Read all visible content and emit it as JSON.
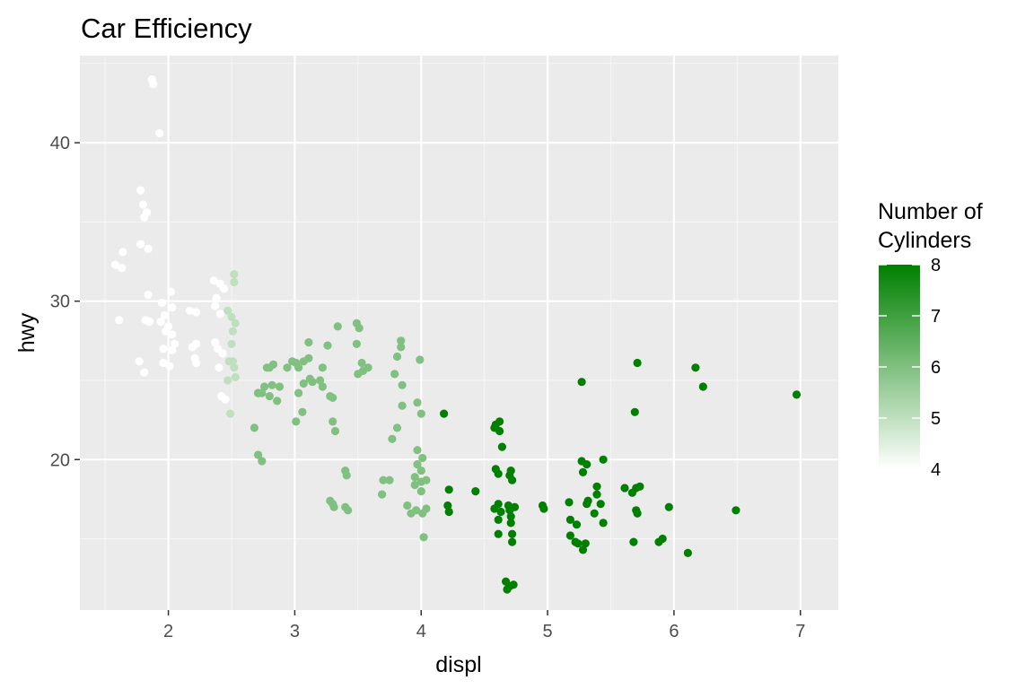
{
  "chart_data": {
    "type": "scatter",
    "title": "Car Efficiency",
    "xlabel": "displ",
    "ylabel": "hwy",
    "xlim": [
      1.3,
      7.3
    ],
    "ylim": [
      10.5,
      45.5
    ],
    "xticks": [
      2,
      3,
      4,
      5,
      6,
      7
    ],
    "xtick_labels": [
      "2",
      "3",
      "4",
      "5",
      "6",
      "7"
    ],
    "yticks": [
      20,
      30,
      40
    ],
    "ytick_labels": [
      "20",
      "30",
      "40"
    ],
    "grid": true,
    "legend": {
      "title_lines": [
        "Number of",
        "Cylinders"
      ],
      "position": "right",
      "type": "continuous-colorbar",
      "range": [
        4,
        8
      ],
      "breaks": [
        4,
        5,
        6,
        7,
        8
      ],
      "break_labels": [
        "4",
        "5",
        "6",
        "7",
        "8"
      ],
      "low_color": "#ffffff",
      "high_color": "#008000"
    },
    "colors": {
      "panel_background": "#ebebeb",
      "grid_major": "#ffffff",
      "grid_minor": "#f5f5f5",
      "tick_text": "#4d4d4d"
    },
    "points": [
      [
        1.87,
        44.0
      ],
      [
        1.88,
        43.7
      ],
      [
        1.93,
        40.6
      ],
      [
        1.78,
        37.0
      ],
      [
        1.8,
        36.1
      ],
      [
        1.83,
        35.6
      ],
      [
        1.81,
        35.3
      ],
      [
        1.78,
        33.6
      ],
      [
        1.84,
        33.3
      ],
      [
        1.64,
        33.1
      ],
      [
        1.58,
        32.3
      ],
      [
        1.63,
        32.1
      ],
      [
        1.84,
        30.4
      ],
      [
        2.02,
        30.6
      ],
      [
        1.95,
        29.9
      ],
      [
        2.03,
        29.6
      ],
      [
        2.17,
        29.4
      ],
      [
        2.22,
        29.3
      ],
      [
        1.97,
        29.1
      ],
      [
        1.61,
        28.8
      ],
      [
        1.82,
        28.8
      ],
      [
        1.85,
        28.7
      ],
      [
        1.94,
        28.7
      ],
      [
        2.0,
        28.4
      ],
      [
        1.98,
        28.1
      ],
      [
        2.03,
        27.9
      ],
      [
        2.05,
        27.3
      ],
      [
        2.22,
        27.3
      ],
      [
        2.19,
        27.1
      ],
      [
        1.96,
        27.0
      ],
      [
        2.03,
        26.9
      ],
      [
        2.21,
        26.4
      ],
      [
        2.22,
        26.1
      ],
      [
        1.77,
        26.2
      ],
      [
        1.96,
        26.1
      ],
      [
        2.01,
        25.9
      ],
      [
        1.81,
        25.5
      ],
      [
        2.36,
        31.3
      ],
      [
        2.41,
        31.1
      ],
      [
        2.44,
        30.8
      ],
      [
        2.52,
        31.7
      ],
      [
        2.52,
        31.2
      ],
      [
        2.38,
        30.2
      ],
      [
        2.37,
        29.7
      ],
      [
        2.41,
        29.2
      ],
      [
        2.51,
        28.1
      ],
      [
        2.37,
        27.4
      ],
      [
        2.39,
        27.0
      ],
      [
        2.43,
        26.7
      ],
      [
        2.5,
        27.3
      ],
      [
        2.51,
        26.2
      ],
      [
        2.4,
        25.8
      ],
      [
        2.47,
        25.0
      ],
      [
        2.53,
        25.2
      ],
      [
        2.42,
        24.0
      ],
      [
        2.45,
        23.8
      ],
      [
        2.49,
        22.9
      ],
      [
        2.68,
        22.0
      ],
      [
        2.71,
        20.3
      ],
      [
        2.74,
        19.9
      ],
      [
        2.71,
        24.2
      ],
      [
        2.74,
        24.2
      ],
      [
        2.47,
        29.4
      ],
      [
        2.5,
        29.0
      ],
      [
        2.53,
        28.6
      ],
      [
        2.48,
        26.2
      ],
      [
        2.52,
        25.8
      ],
      [
        2.78,
        25.8
      ],
      [
        2.8,
        25.8
      ],
      [
        2.83,
        26.0
      ],
      [
        2.94,
        25.8
      ],
      [
        2.98,
        26.2
      ],
      [
        3.01,
        26.1
      ],
      [
        3.03,
        25.8
      ],
      [
        2.76,
        24.6
      ],
      [
        2.82,
        24.7
      ],
      [
        2.88,
        24.6
      ],
      [
        2.71,
        24.2
      ],
      [
        2.8,
        24.0
      ],
      [
        2.86,
        23.7
      ],
      [
        3.07,
        26.2
      ],
      [
        3.11,
        26.4
      ],
      [
        3.12,
        25.1
      ],
      [
        3.07,
        24.8
      ],
      [
        3.14,
        24.9
      ],
      [
        3.2,
        25.0
      ],
      [
        3.22,
        25.8
      ],
      [
        3.11,
        27.4
      ],
      [
        3.03,
        24.2
      ],
      [
        3.06,
        23.0
      ],
      [
        3.01,
        22.4
      ],
      [
        3.26,
        27.2
      ],
      [
        3.34,
        28.4
      ],
      [
        3.22,
        24.6
      ],
      [
        3.28,
        24.0
      ],
      [
        3.3,
        23.9
      ],
      [
        3.3,
        22.4
      ],
      [
        3.32,
        21.8
      ],
      [
        3.4,
        19.3
      ],
      [
        3.41,
        19.0
      ],
      [
        3.28,
        17.4
      ],
      [
        3.3,
        17.2
      ],
      [
        3.31,
        17.0
      ],
      [
        3.4,
        17.0
      ],
      [
        3.42,
        16.8
      ],
      [
        3.49,
        28.6
      ],
      [
        3.51,
        28.3
      ],
      [
        3.49,
        27.3
      ],
      [
        3.53,
        26.1
      ],
      [
        3.58,
        25.8
      ],
      [
        3.5,
        25.4
      ],
      [
        3.54,
        25.6
      ],
      [
        3.7,
        18.7
      ],
      [
        3.75,
        18.7
      ],
      [
        3.69,
        17.8
      ],
      [
        3.84,
        27.5
      ],
      [
        3.84,
        27.1
      ],
      [
        3.81,
        26.5
      ],
      [
        3.79,
        25.4
      ],
      [
        3.85,
        24.7
      ],
      [
        3.81,
        22.0
      ],
      [
        3.77,
        21.3
      ],
      [
        3.85,
        23.4
      ],
      [
        3.99,
        26.3
      ],
      [
        3.97,
        23.6
      ],
      [
        4.0,
        22.9
      ],
      [
        3.97,
        20.6
      ],
      [
        4.01,
        20.1
      ],
      [
        3.97,
        19.7
      ],
      [
        4.0,
        19.3
      ],
      [
        3.95,
        18.9
      ],
      [
        4.0,
        18.6
      ],
      [
        4.04,
        18.7
      ],
      [
        3.95,
        18.4
      ],
      [
        4.0,
        18.0
      ],
      [
        3.89,
        17.1
      ],
      [
        3.92,
        16.6
      ],
      [
        3.96,
        16.8
      ],
      [
        4.01,
        16.6
      ],
      [
        4.04,
        16.9
      ],
      [
        4.21,
        17.1
      ],
      [
        4.22,
        16.7
      ],
      [
        4.18,
        22.9
      ],
      [
        4.22,
        18.1
      ],
      [
        4.02,
        15.1
      ],
      [
        4.43,
        18.0
      ],
      [
        4.59,
        19.4
      ],
      [
        4.62,
        21.8
      ],
      [
        4.62,
        22.4
      ],
      [
        4.59,
        22.2
      ],
      [
        4.58,
        22.0
      ],
      [
        4.61,
        19.1
      ],
      [
        4.61,
        17.2
      ],
      [
        4.64,
        20.8
      ],
      [
        4.71,
        19.3
      ],
      [
        4.72,
        18.7
      ],
      [
        4.7,
        19.0
      ],
      [
        4.58,
        16.9
      ],
      [
        4.63,
        16.7
      ],
      [
        4.7,
        16.8
      ],
      [
        4.69,
        17.1
      ],
      [
        4.74,
        17.0
      ],
      [
        4.71,
        16.4
      ],
      [
        4.61,
        16.2
      ],
      [
        4.71,
        16.0
      ],
      [
        4.61,
        15.3
      ],
      [
        4.72,
        15.3
      ],
      [
        4.72,
        14.8
      ],
      [
        4.67,
        12.3
      ],
      [
        4.68,
        11.8
      ],
      [
        4.73,
        12.1
      ],
      [
        4.7,
        12.0
      ],
      [
        4.96,
        17.1
      ],
      [
        4.97,
        16.9
      ],
      [
        5.17,
        17.3
      ],
      [
        5.31,
        17.2
      ],
      [
        5.32,
        17.4
      ],
      [
        5.39,
        17.8
      ],
      [
        5.42,
        17.2
      ],
      [
        5.39,
        18.3
      ],
      [
        5.18,
        16.2
      ],
      [
        5.23,
        15.9
      ],
      [
        5.37,
        16.6
      ],
      [
        5.44,
        16.0
      ],
      [
        5.18,
        15.2
      ],
      [
        5.22,
        14.8
      ],
      [
        5.24,
        14.7
      ],
      [
        5.28,
        14.3
      ],
      [
        5.3,
        14.7
      ],
      [
        5.27,
        19.9
      ],
      [
        5.28,
        19.2
      ],
      [
        5.31,
        19.7
      ],
      [
        5.44,
        20.0
      ],
      [
        5.27,
        24.9
      ],
      [
        5.71,
        26.1
      ],
      [
        5.69,
        23.0
      ],
      [
        5.61,
        18.2
      ],
      [
        5.67,
        17.9
      ],
      [
        5.7,
        18.2
      ],
      [
        5.73,
        18.3
      ],
      [
        5.7,
        16.8
      ],
      [
        5.71,
        16.6
      ],
      [
        5.68,
        14.8
      ],
      [
        5.88,
        14.8
      ],
      [
        5.91,
        15.0
      ],
      [
        5.96,
        17.0
      ],
      [
        6.11,
        14.1
      ],
      [
        6.17,
        25.8
      ],
      [
        6.23,
        24.6
      ],
      [
        6.49,
        16.8
      ],
      [
        6.97,
        24.1
      ]
    ]
  }
}
